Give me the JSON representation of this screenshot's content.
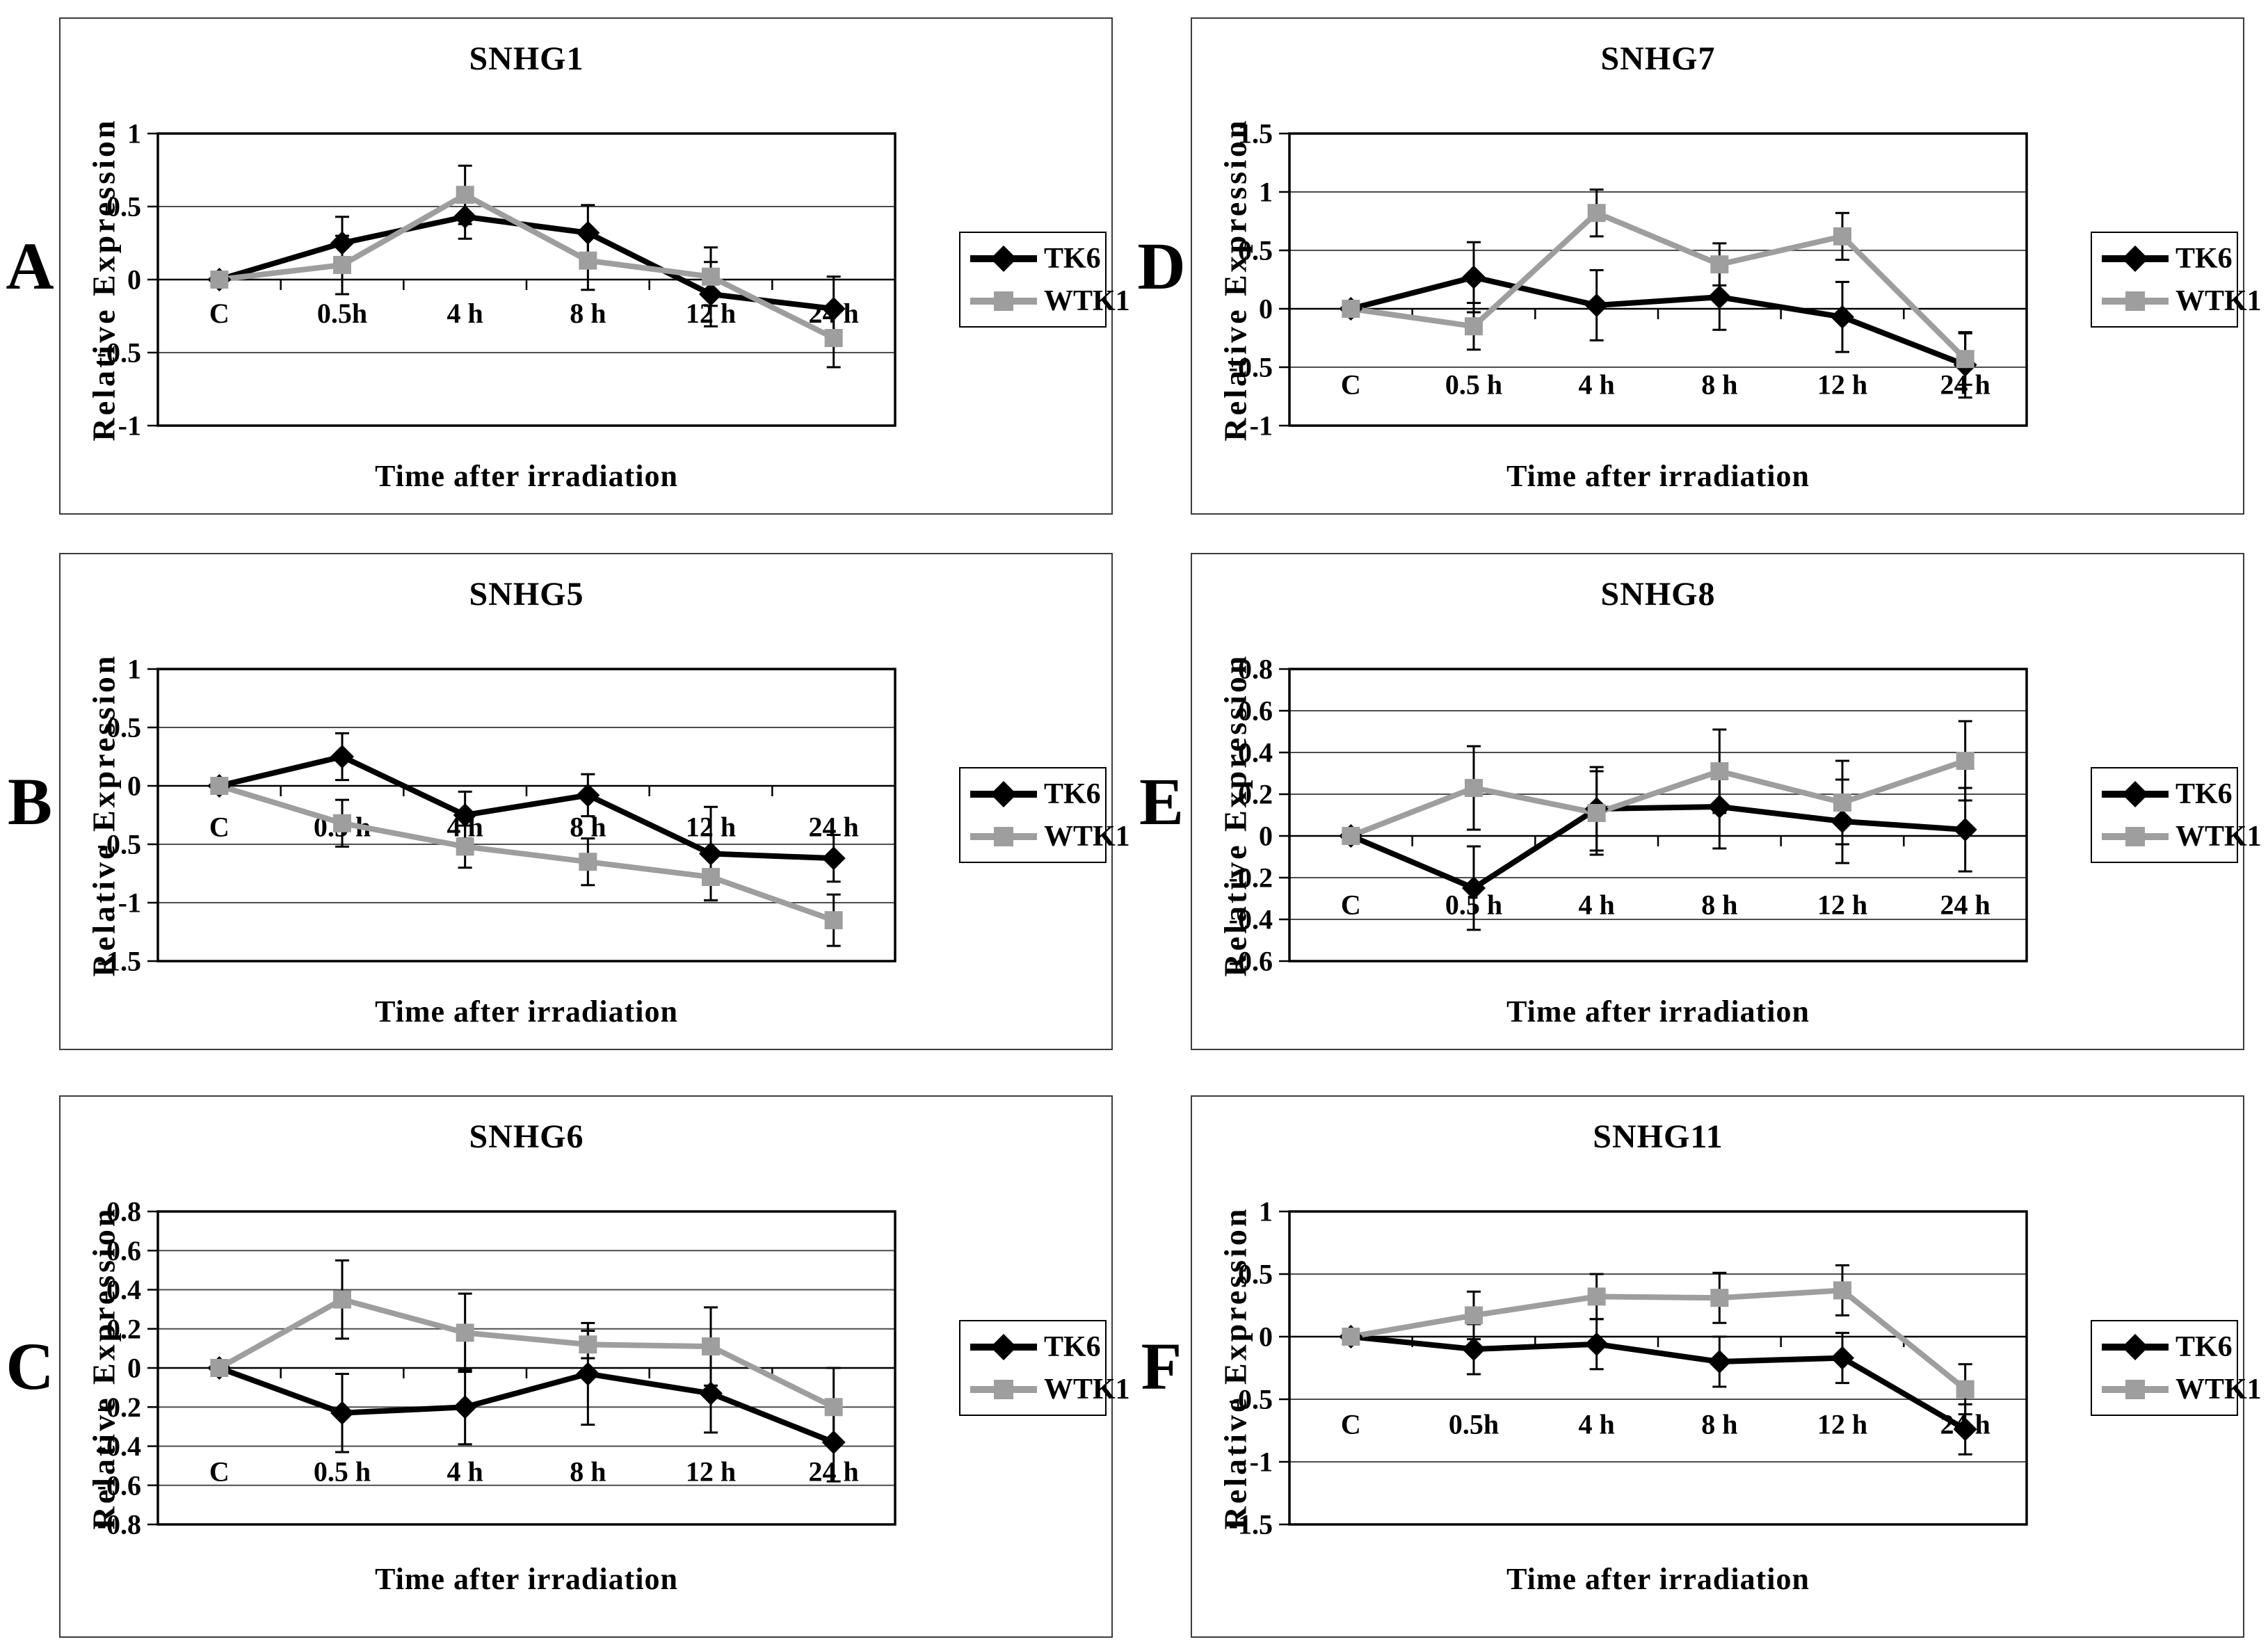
{
  "figure": {
    "background": "#ffffff",
    "text_color": "#000000",
    "tk6_color": "#000000",
    "wtk1_color": "#9e9e9e",
    "error_bar_color": "#000000",
    "gridline_color": "#4d4d4d"
  },
  "chart_data": [
    {
      "panel_label": "A",
      "title": "SNHG1",
      "type": "line",
      "xlabel": "Time after irradiation",
      "ylabel": "Relative Expression",
      "categories": [
        "C",
        "0.5h",
        "4 h",
        "8 h",
        "12 h",
        "24 h"
      ],
      "ylim": [
        -1,
        1
      ],
      "yticks": [
        1,
        0.5,
        0,
        -0.5,
        -1
      ],
      "ytick_labels": [
        "1",
        "0.5",
        "0",
        "-0.5",
        "-1"
      ],
      "grid": true,
      "legend_position": "right",
      "xtick_label_y": -0.23,
      "series": [
        {
          "name": "TK6",
          "color": "#000000",
          "marker": "diamond",
          "values": [
            0,
            0.25,
            0.43,
            0.32,
            -0.1,
            -0.2
          ],
          "errors": [
            0.03,
            0.18,
            0.15,
            0.19,
            0.22,
            0.22
          ]
        },
        {
          "name": "WTK1",
          "color": "#9e9e9e",
          "marker": "square",
          "values": [
            0,
            0.1,
            0.58,
            0.13,
            0.02,
            -0.4
          ],
          "errors": [
            0.03,
            0.2,
            0.2,
            0.2,
            0.2,
            0.2
          ]
        }
      ]
    },
    {
      "panel_label": "B",
      "title": "SNHG5",
      "type": "line",
      "xlabel": "Time after irradiation",
      "ylabel": "Relative Expression",
      "categories": [
        "C",
        "0.5 h",
        "4 h",
        "8 h",
        "12 h",
        "24 h"
      ],
      "ylim": [
        -1.5,
        1
      ],
      "yticks": [
        1,
        0.5,
        0,
        -0.5,
        -1,
        -1.5
      ],
      "ytick_labels": [
        "1",
        "0.5",
        "0",
        "-0.5",
        "-1",
        "-1.5"
      ],
      "grid": true,
      "legend_position": "right",
      "xtick_label_y": -0.35,
      "series": [
        {
          "name": "TK6",
          "color": "#000000",
          "marker": "diamond",
          "values": [
            0,
            0.25,
            -0.25,
            -0.08,
            -0.58,
            -0.62
          ],
          "errors": [
            0.02,
            0.2,
            0.2,
            0.18,
            0.4,
            0.2
          ]
        },
        {
          "name": "WTK1",
          "color": "#9e9e9e",
          "marker": "square",
          "values": [
            0,
            -0.32,
            -0.52,
            -0.65,
            -0.78,
            -1.15
          ],
          "errors": [
            0.03,
            0.2,
            0.18,
            0.2,
            0.2,
            0.22
          ]
        }
      ]
    },
    {
      "panel_label": "C",
      "title": "SNHG6",
      "type": "line",
      "xlabel": "Time after irradiation",
      "ylabel": "Relative Expression",
      "categories": [
        "C",
        "0.5 h",
        "4 h",
        "8 h",
        "12 h",
        "24 h"
      ],
      "ylim": [
        -0.8,
        0.8
      ],
      "yticks": [
        0.8,
        0.6,
        0.4,
        0.2,
        0,
        -0.2,
        -0.4,
        -0.6,
        -0.8
      ],
      "ytick_labels": [
        "0.8",
        "0.6",
        "0.4",
        "0.2",
        "0",
        "-0.2",
        "-0.4",
        "-0.6",
        "-0.8"
      ],
      "grid": true,
      "legend_position": "right",
      "xtick_label_y": -0.53,
      "series": [
        {
          "name": "TK6",
          "color": "#000000",
          "marker": "diamond",
          "values": [
            0,
            -0.23,
            -0.2,
            -0.03,
            -0.13,
            -0.38
          ],
          "errors": [
            0.02,
            0.2,
            0.19,
            0.26,
            0.2,
            0.2
          ]
        },
        {
          "name": "WTK1",
          "color": "#9e9e9e",
          "marker": "square",
          "values": [
            0,
            0.35,
            0.18,
            0.12,
            0.11,
            -0.2
          ],
          "errors": [
            0.03,
            0.2,
            0.2,
            0.07,
            0.2,
            0.2
          ]
        }
      ]
    },
    {
      "panel_label": "D",
      "title": "SNHG7",
      "type": "line",
      "xlabel": "Time after irradiation",
      "ylabel": "Relative Expression",
      "categories": [
        "C",
        "0.5 h",
        "4 h",
        "8 h",
        "12 h",
        "24 h"
      ],
      "ylim": [
        -1,
        1.5
      ],
      "yticks": [
        1.5,
        1,
        0.5,
        0,
        -0.5,
        -1
      ],
      "ytick_labels": [
        "1.5",
        "1",
        "0.5",
        "0",
        "-0.5",
        "-1"
      ],
      "grid": true,
      "legend_position": "right",
      "xtick_label_y": -0.65,
      "series": [
        {
          "name": "TK6",
          "color": "#000000",
          "marker": "diamond",
          "values": [
            0,
            0.27,
            0.03,
            0.1,
            -0.07,
            -0.48
          ],
          "errors": [
            0.02,
            0.3,
            0.3,
            0.28,
            0.3,
            0.28
          ]
        },
        {
          "name": "WTK1",
          "color": "#9e9e9e",
          "marker": "square",
          "values": [
            0,
            -0.15,
            0.82,
            0.38,
            0.62,
            -0.43
          ],
          "errors": [
            0.03,
            0.2,
            0.2,
            0.18,
            0.2,
            0.22
          ]
        }
      ]
    },
    {
      "panel_label": "E",
      "title": "SNHG8",
      "type": "line",
      "xlabel": "Time after irradiation",
      "ylabel": "Relative Expression",
      "categories": [
        "C",
        "0.5 h",
        "4 h",
        "8 h",
        "12 h",
        "24 h"
      ],
      "ylim": [
        -0.6,
        0.8
      ],
      "yticks": [
        0.8,
        0.6,
        0.4,
        0.2,
        0,
        -0.2,
        -0.4,
        -0.6
      ],
      "ytick_labels": [
        "0.8",
        "0.6",
        "0.4",
        "0.2",
        "0",
        "-0.2",
        "-0.4",
        "-0.6"
      ],
      "grid": true,
      "legend_position": "right",
      "xtick_label_y": -0.33,
      "series": [
        {
          "name": "TK6",
          "color": "#000000",
          "marker": "diamond",
          "values": [
            0,
            -0.25,
            0.13,
            0.14,
            0.07,
            0.03
          ],
          "errors": [
            0.02,
            0.2,
            0.2,
            0.2,
            0.2,
            0.2
          ]
        },
        {
          "name": "WTK1",
          "color": "#9e9e9e",
          "marker": "square",
          "values": [
            0,
            0.23,
            0.11,
            0.31,
            0.16,
            0.36
          ],
          "errors": [
            0.03,
            0.2,
            0.2,
            0.2,
            0.2,
            0.19
          ]
        }
      ]
    },
    {
      "panel_label": "F",
      "title": "SNHG11",
      "type": "line",
      "xlabel": "Time after irradiation",
      "ylabel": "Relative Expression",
      "categories": [
        "C",
        "0.5h",
        "4 h",
        "8 h",
        "12 h",
        "24 h"
      ],
      "ylim": [
        -1.5,
        1
      ],
      "yticks": [
        1,
        0.5,
        0,
        -0.5,
        -1,
        -1.5
      ],
      "ytick_labels": [
        "1",
        "0.5",
        "0",
        "-0.5",
        "-1",
        "-1.5"
      ],
      "grid": true,
      "legend_position": "right",
      "xtick_label_y": -0.7,
      "series": [
        {
          "name": "TK6",
          "color": "#000000",
          "marker": "diamond",
          "values": [
            0,
            -0.1,
            -0.06,
            -0.2,
            -0.17,
            -0.74
          ],
          "errors": [
            0.03,
            0.2,
            0.2,
            0.2,
            0.2,
            0.2
          ]
        },
        {
          "name": "WTK1",
          "color": "#9e9e9e",
          "marker": "square",
          "values": [
            0,
            0.17,
            0.32,
            0.31,
            0.37,
            -0.42
          ],
          "errors": [
            0.02,
            0.19,
            0.18,
            0.2,
            0.2,
            0.2
          ]
        }
      ]
    }
  ]
}
